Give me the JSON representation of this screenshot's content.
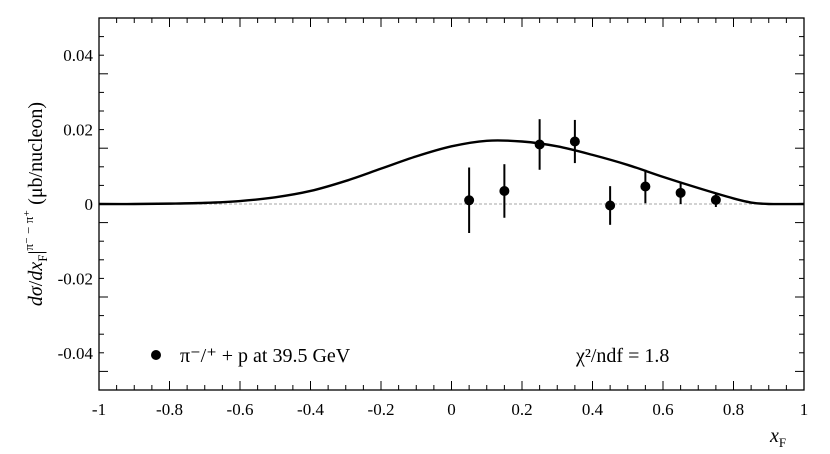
{
  "chart_data": {
    "type": "scatter",
    "xlabel": "x_F",
    "ylabel": "dσ/dx_F|^{π⁻ − π⁺} (μb/nucleon)",
    "xlim": [
      -1,
      1
    ],
    "ylim": [
      -0.05,
      0.05
    ],
    "x_ticks": [
      -1,
      -0.8,
      -0.6,
      -0.4,
      -0.2,
      0,
      0.2,
      0.4,
      0.6,
      0.8,
      1
    ],
    "x_tick_labels": [
      "-1",
      "-0.8",
      "-0.6",
      "-0.4",
      "-0.2",
      "0",
      "0.2",
      "0.4",
      "0.6",
      "0.8",
      "1"
    ],
    "y_ticks": [
      -0.04,
      -0.02,
      0,
      0.02,
      0.04
    ],
    "y_tick_labels": [
      "-0.04",
      "-0.02",
      "0",
      "0.02",
      "0.04"
    ],
    "zero_line": true,
    "legend_position": "bottom-left",
    "series": [
      {
        "kind": "points",
        "name": "π⁻/⁺ + p at 39.5 GeV",
        "x": [
          0.05,
          0.15,
          0.25,
          0.35,
          0.45,
          0.55,
          0.65,
          0.75
        ],
        "y": [
          0.001,
          0.0035,
          0.016,
          0.0168,
          -0.0004,
          0.0047,
          0.003,
          0.0011
        ],
        "yerr": [
          0.0088,
          0.0072,
          0.0068,
          0.0058,
          0.0052,
          0.0045,
          0.003,
          0.0019
        ]
      },
      {
        "kind": "curve",
        "x": [
          -1,
          -0.9,
          -0.8,
          -0.7,
          -0.6,
          -0.5,
          -0.4,
          -0.3,
          -0.2,
          -0.1,
          0,
          0.1,
          0.2,
          0.3,
          0.4,
          0.5,
          0.6,
          0.7,
          0.8,
          0.85,
          0.9,
          1
        ],
        "y": [
          0,
          0,
          0.0001,
          0.0003,
          0.0008,
          0.0018,
          0.0035,
          0.0062,
          0.0095,
          0.0128,
          0.0155,
          0.017,
          0.0168,
          0.0155,
          0.0132,
          0.0105,
          0.0073,
          0.0043,
          0.0015,
          0.0004,
          0,
          0
        ]
      }
    ],
    "annotation": "χ²/ndf = 1.8"
  },
  "legend": {
    "label": "π⁻/⁺ + p at 39.5 GeV"
  }
}
